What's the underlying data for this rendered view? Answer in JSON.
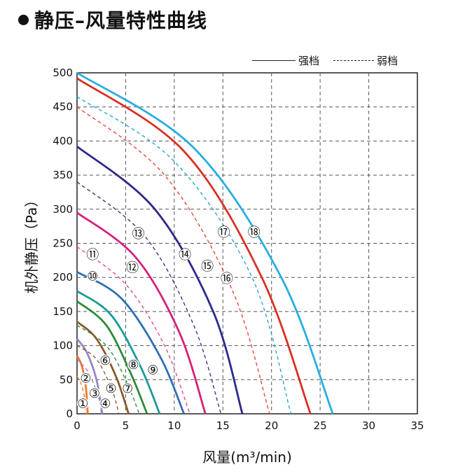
{
  "title": "静压–风量特性曲线",
  "legend": {
    "strong": "强档",
    "weak": "弱档"
  },
  "chart_data": {
    "type": "line",
    "title": "静压–风量特性曲线",
    "xlabel": "风量(m³/min)",
    "ylabel": "机外静压（Pa）",
    "xlim": [
      0,
      35
    ],
    "ylim": [
      0,
      500
    ],
    "xticks": [
      "0",
      "5",
      "10",
      "15",
      "20",
      "25",
      "30",
      "35"
    ],
    "yticks": [
      "0",
      "50",
      "100",
      "150",
      "200",
      "250",
      "300",
      "350",
      "400",
      "450",
      "500"
    ],
    "grid": true,
    "legend_position": "top-right",
    "series": [
      {
        "label": "1",
        "style": "solid",
        "color": "#f07a2a",
        "points": [
          [
            0,
            85
          ],
          [
            0.5,
            70
          ],
          [
            0.9,
            40
          ],
          [
            1.1,
            0
          ]
        ]
      },
      {
        "label": "2",
        "style": "dashed",
        "color": "#f07a2a",
        "points": [
          [
            0,
            55
          ],
          [
            0.4,
            45
          ],
          [
            0.8,
            22
          ],
          [
            0.9,
            0
          ]
        ]
      },
      {
        "label": "3",
        "style": "solid",
        "color": "#9b86c5",
        "points": [
          [
            0,
            110
          ],
          [
            1.0,
            90
          ],
          [
            2.0,
            50
          ],
          [
            2.6,
            0
          ]
        ]
      },
      {
        "label": "4",
        "style": "dashed",
        "color": "#9b86c5",
        "points": [
          [
            0,
            80
          ],
          [
            1.2,
            60
          ],
          [
            2.2,
            25
          ],
          [
            2.5,
            0
          ]
        ]
      },
      {
        "label": "5",
        "style": "solid",
        "color": "#8a5a2a",
        "points": [
          [
            0,
            135
          ],
          [
            2.0,
            110
          ],
          [
            4.0,
            55
          ],
          [
            5.3,
            0
          ]
        ]
      },
      {
        "label": "6",
        "style": "dashed",
        "color": "#8a5a2a",
        "points": [
          [
            0,
            100
          ],
          [
            2.0,
            80
          ],
          [
            3.6,
            35
          ],
          [
            4.3,
            0
          ]
        ]
      },
      {
        "label": "7",
        "style": "solid",
        "color": "#2e8b3a",
        "points": [
          [
            0,
            165
          ],
          [
            3.0,
            130
          ],
          [
            5.5,
            60
          ],
          [
            7.2,
            0
          ]
        ]
      },
      {
        "label": "8",
        "style": "dashed",
        "color": "#2e8b3a",
        "points": [
          [
            0,
            130
          ],
          [
            3.0,
            100
          ],
          [
            5.0,
            50
          ],
          [
            6.4,
            0
          ]
        ]
      },
      {
        "label": "9",
        "style": "solid",
        "color": "#1a9a9a",
        "points": [
          [
            0,
            180
          ],
          [
            3.5,
            145
          ],
          [
            6.5,
            70
          ],
          [
            8.5,
            0
          ]
        ]
      },
      {
        "label": "10",
        "style": "solid",
        "color": "#2f6fb5",
        "points": [
          [
            0,
            208
          ],
          [
            4.5,
            170
          ],
          [
            8.5,
            85
          ],
          [
            11.0,
            0
          ]
        ]
      },
      {
        "label": "11",
        "style": "dashed",
        "color": "#e64a8f",
        "points": [
          [
            0,
            245
          ],
          [
            5.0,
            190
          ],
          [
            9.0,
            100
          ],
          [
            11.6,
            0
          ]
        ]
      },
      {
        "label": "12",
        "style": "solid",
        "color": "#d4207a",
        "points": [
          [
            0,
            295
          ],
          [
            6.0,
            230
          ],
          [
            10.5,
            120
          ],
          [
            13.2,
            0
          ]
        ]
      },
      {
        "label": "13",
        "style": "dashed",
        "color": "#3a3a7a",
        "points": [
          [
            0,
            340
          ],
          [
            7.0,
            260
          ],
          [
            12.0,
            130
          ],
          [
            14.8,
            0
          ]
        ]
      },
      {
        "label": "14",
        "style": "solid",
        "color": "#2a2a8a",
        "points": [
          [
            0,
            392
          ],
          [
            8.0,
            300
          ],
          [
            14.0,
            150
          ],
          [
            17.0,
            0
          ]
        ]
      },
      {
        "label": "15",
        "style": "dashed",
        "color": "#e8473a",
        "points": [
          [
            0,
            450
          ],
          [
            9.0,
            350
          ],
          [
            16.0,
            180
          ],
          [
            19.8,
            0
          ]
        ]
      },
      {
        "label": "16",
        "style": "solid",
        "color": "#d93025",
        "points": [
          [
            0,
            492
          ],
          [
            11.0,
            385
          ],
          [
            19.0,
            200
          ],
          [
            24.0,
            0
          ]
        ]
      },
      {
        "label": "17",
        "style": "dashed",
        "color": "#25a8cc",
        "points": [
          [
            0,
            465
          ],
          [
            10.0,
            370
          ],
          [
            18.0,
            200
          ],
          [
            22.0,
            0
          ]
        ]
      },
      {
        "label": "18",
        "style": "solid",
        "color": "#27aee0",
        "points": [
          [
            0,
            500
          ],
          [
            12.0,
            390
          ],
          [
            21.0,
            200
          ],
          [
            26.3,
            0
          ]
        ]
      }
    ],
    "annotations": [
      {
        "text": "①",
        "x": 0.6,
        "y": 15
      },
      {
        "text": "②",
        "x": 0.9,
        "y": 52
      },
      {
        "text": "③",
        "x": 1.8,
        "y": 30
      },
      {
        "text": "④",
        "x": 2.9,
        "y": 15
      },
      {
        "text": "⑤",
        "x": 3.5,
        "y": 37
      },
      {
        "text": "⑥",
        "x": 2.9,
        "y": 78
      },
      {
        "text": "⑦",
        "x": 5.2,
        "y": 37
      },
      {
        "text": "⑧",
        "x": 5.8,
        "y": 72
      },
      {
        "text": "⑨",
        "x": 7.8,
        "y": 64
      },
      {
        "text": "⑩",
        "x": 1.6,
        "y": 202
      },
      {
        "text": "⑪",
        "x": 1.6,
        "y": 233
      },
      {
        "text": "⑫",
        "x": 5.7,
        "y": 214
      },
      {
        "text": "⑬",
        "x": 6.3,
        "y": 264
      },
      {
        "text": "⑭",
        "x": 11.1,
        "y": 233
      },
      {
        "text": "⑮",
        "x": 13.4,
        "y": 216
      },
      {
        "text": "⑯",
        "x": 15.4,
        "y": 198
      },
      {
        "text": "⑰",
        "x": 15.1,
        "y": 266
      },
      {
        "text": "⑱",
        "x": 18.2,
        "y": 266
      }
    ]
  }
}
